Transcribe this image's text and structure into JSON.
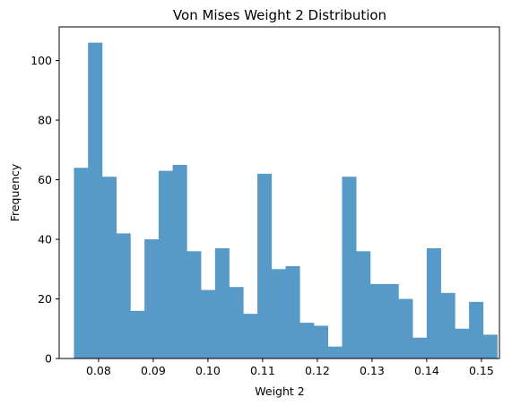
{
  "chart_data": {
    "type": "bar",
    "title": "Von Mises Weight 2 Distribution",
    "xlabel": "Weight 2",
    "ylabel": "Frequency",
    "xlim": [
      0.0728,
      0.1533
    ],
    "ylim": [
      0,
      111.3
    ],
    "bar_color": "#5799c7",
    "grid": false,
    "x_ticks": [
      0.08,
      0.09,
      0.1,
      0.11,
      0.12,
      0.13,
      0.14,
      0.15
    ],
    "x_tick_labels": [
      "0.08",
      "0.09",
      "0.10",
      "0.11",
      "0.12",
      "0.13",
      "0.14",
      "0.15"
    ],
    "y_ticks": [
      0,
      20,
      40,
      60,
      80,
      100
    ],
    "y_tick_labels": [
      "0",
      "20",
      "40",
      "60",
      "80",
      "100"
    ],
    "bin_edges": [
      0.0755,
      0.07808,
      0.08066,
      0.08324,
      0.08582,
      0.0884,
      0.09098,
      0.09356,
      0.09614,
      0.09872,
      0.1013,
      0.10388,
      0.10646,
      0.10904,
      0.11162,
      0.1142,
      0.11678,
      0.11936,
      0.12194,
      0.12452,
      0.1271,
      0.12968,
      0.13226,
      0.13484,
      0.13742,
      0.14,
      0.14258,
      0.14516,
      0.14774,
      0.15032,
      0.1529
    ],
    "values": [
      64,
      106,
      61,
      42,
      16,
      40,
      63,
      65,
      36,
      23,
      37,
      24,
      15,
      62,
      30,
      31,
      12,
      11,
      4,
      61,
      36,
      25,
      25,
      20,
      7,
      37,
      22,
      10,
      19,
      8
    ]
  }
}
